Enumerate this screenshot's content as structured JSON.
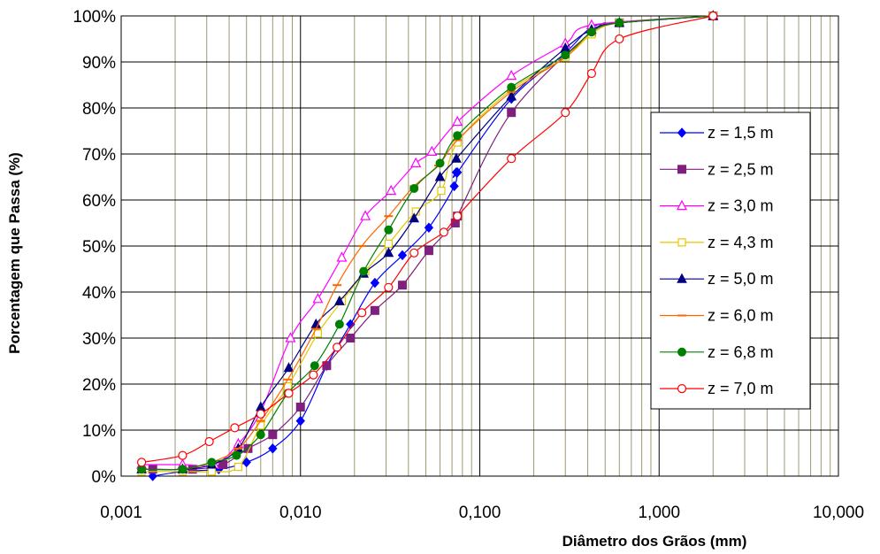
{
  "chart_data": {
    "type": "scatter",
    "xlabel": "Diâmetro dos Grãos (mm)",
    "ylabel": "Porcentagem que Passa (%)",
    "x_scale": "log",
    "xlim": [
      0.001,
      10
    ],
    "ylim": [
      0,
      100
    ],
    "x_tick_labels": [
      "0,001",
      "0,010",
      "0,100",
      "1,000",
      "10,000"
    ],
    "y_tick_labels": [
      "0%",
      "10%",
      "20%",
      "30%",
      "40%",
      "50%",
      "60%",
      "70%",
      "80%",
      "90%",
      "100%"
    ],
    "grid": true,
    "grid_color": "#a09870",
    "legend_position": "right",
    "series": [
      {
        "name": "z = 1,5 m",
        "color": "#0000ff",
        "marker": "diamond",
        "x": [
          0.0015,
          0.0022,
          0.0035,
          0.005,
          0.007,
          0.01,
          0.014,
          0.019,
          0.026,
          0.037,
          0.052,
          0.072,
          0.074,
          0.075,
          0.15,
          0.3,
          0.42,
          0.6,
          2.0
        ],
        "y": [
          0,
          1,
          1.5,
          3,
          6,
          12,
          24,
          33,
          42,
          48,
          54,
          63,
          66,
          66,
          82,
          92,
          97.5,
          98.5,
          100
        ]
      },
      {
        "name": "z = 2,5 m",
        "color": "#7f1f7f",
        "marker": "square",
        "x": [
          0.0015,
          0.0025,
          0.0037,
          0.0051,
          0.007,
          0.01,
          0.014,
          0.019,
          0.026,
          0.037,
          0.052,
          0.073,
          0.075,
          0.15,
          0.42,
          0.6,
          2.0
        ],
        "y": [
          1.5,
          1.5,
          2.5,
          6,
          9,
          15,
          24,
          30,
          36,
          41.5,
          49,
          55,
          56.5,
          79,
          96.5,
          98.5,
          100
        ]
      },
      {
        "name": "z = 3,0 m",
        "color": "#ff00ff",
        "marker": "triangle-open",
        "x": [
          0.0013,
          0.0022,
          0.0033,
          0.0045,
          0.006,
          0.0088,
          0.0125,
          0.017,
          0.023,
          0.032,
          0.044,
          0.054,
          0.075,
          0.15,
          0.3,
          0.42,
          2.0
        ],
        "y": [
          2.5,
          2.5,
          2.5,
          7,
          14,
          30,
          38.5,
          47.5,
          56.5,
          62,
          68,
          70.5,
          77,
          87,
          94,
          98,
          100
        ]
      },
      {
        "name": "z = 4,3 m",
        "color": "#e6c800",
        "marker": "square-open",
        "x": [
          0.0013,
          0.0022,
          0.0032,
          0.0045,
          0.006,
          0.0085,
          0.0125,
          0.017,
          0.023,
          0.031,
          0.044,
          0.061,
          0.075,
          0.15,
          0.3,
          0.42,
          0.6,
          2.0
        ],
        "y": [
          1,
          1,
          1,
          2,
          11,
          19.5,
          31,
          38,
          44.5,
          50.5,
          57.5,
          62,
          72.5,
          84,
          91,
          96,
          98.5,
          100
        ]
      },
      {
        "name": "z = 5,0 m",
        "color": "#000080",
        "marker": "triangle",
        "x": [
          0.0013,
          0.0022,
          0.0032,
          0.0045,
          0.006,
          0.0086,
          0.0122,
          0.0165,
          0.0225,
          0.031,
          0.043,
          0.06,
          0.074,
          0.15,
          0.3,
          0.42,
          0.6,
          2.0
        ],
        "y": [
          1.5,
          1.5,
          2.5,
          6,
          15,
          23.5,
          33,
          38,
          44,
          48.5,
          56,
          65,
          69,
          82.5,
          93,
          97,
          98.5,
          100
        ]
      },
      {
        "name": "z = 6,0 m",
        "color": "#ff6600",
        "marker": "dash",
        "x": [
          0.0013,
          0.0022,
          0.0032,
          0.0045,
          0.006,
          0.0085,
          0.0122,
          0.016,
          0.022,
          0.031,
          0.043,
          0.059,
          0.075,
          0.15,
          0.3,
          0.42,
          0.6,
          2.0
        ],
        "y": [
          1.5,
          1.5,
          3,
          6,
          12,
          21,
          32,
          41.5,
          50,
          56.5,
          63,
          67.5,
          73,
          83.5,
          91,
          96.5,
          98.5,
          100
        ]
      },
      {
        "name": "z = 6,8 m",
        "color": "#008000",
        "marker": "circle",
        "x": [
          0.0013,
          0.0022,
          0.0032,
          0.0044,
          0.006,
          0.0085,
          0.012,
          0.0165,
          0.0225,
          0.031,
          0.043,
          0.06,
          0.075,
          0.15,
          0.3,
          0.42,
          0.6,
          2.0
        ],
        "y": [
          1.5,
          1.5,
          3,
          4.5,
          9,
          18,
          24,
          33,
          44.5,
          53.5,
          62.5,
          68,
          74,
          84.5,
          91.5,
          96.5,
          98.5,
          100
        ]
      },
      {
        "name": "z = 7,0 m",
        "color": "#ff0000",
        "marker": "circle-open",
        "x": [
          0.0013,
          0.0022,
          0.0031,
          0.0043,
          0.006,
          0.0086,
          0.0118,
          0.016,
          0.022,
          0.031,
          0.043,
          0.063,
          0.075,
          0.15,
          0.3,
          0.42,
          0.6,
          2.0
        ],
        "y": [
          3,
          4.5,
          7.5,
          10.5,
          13.5,
          18,
          22,
          28,
          35.5,
          41,
          48.5,
          53,
          56.5,
          69,
          79,
          87.5,
          95,
          100
        ]
      }
    ]
  }
}
